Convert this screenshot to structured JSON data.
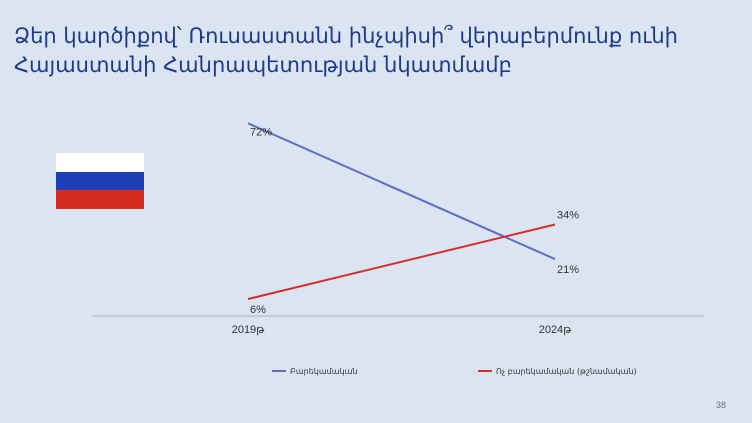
{
  "slide": {
    "title_line1": "Ձեր կարծիքով՝ Ռուսաստանն ինչպիսի՞ վերաբերմունք ունի",
    "title_line2": "Հայաստանի Հանրապետության նկատմամբ",
    "page_number": "38"
  },
  "flag": {
    "icon": "russia-flag",
    "colors": [
      "#ffffff",
      "#1c3fb8",
      "#d52b1e"
    ]
  },
  "chart_data": {
    "type": "line",
    "categories": [
      "2019թ",
      "2024թ"
    ],
    "series": [
      {
        "name": "Բարեկամական",
        "values": [
          72,
          21
        ],
        "labels": [
          "72%",
          "21%"
        ],
        "color": "#5b6fc2"
      },
      {
        "name": "Ոչ բարեկամական (թշնամական)",
        "values": [
          6,
          34
        ],
        "labels": [
          "6%",
          "34%"
        ],
        "color": "#d62d2d"
      }
    ],
    "title": "",
    "xlabel": "",
    "ylabel": "",
    "ylim": [
      0,
      80
    ],
    "grid": false,
    "legend": "bottom"
  }
}
